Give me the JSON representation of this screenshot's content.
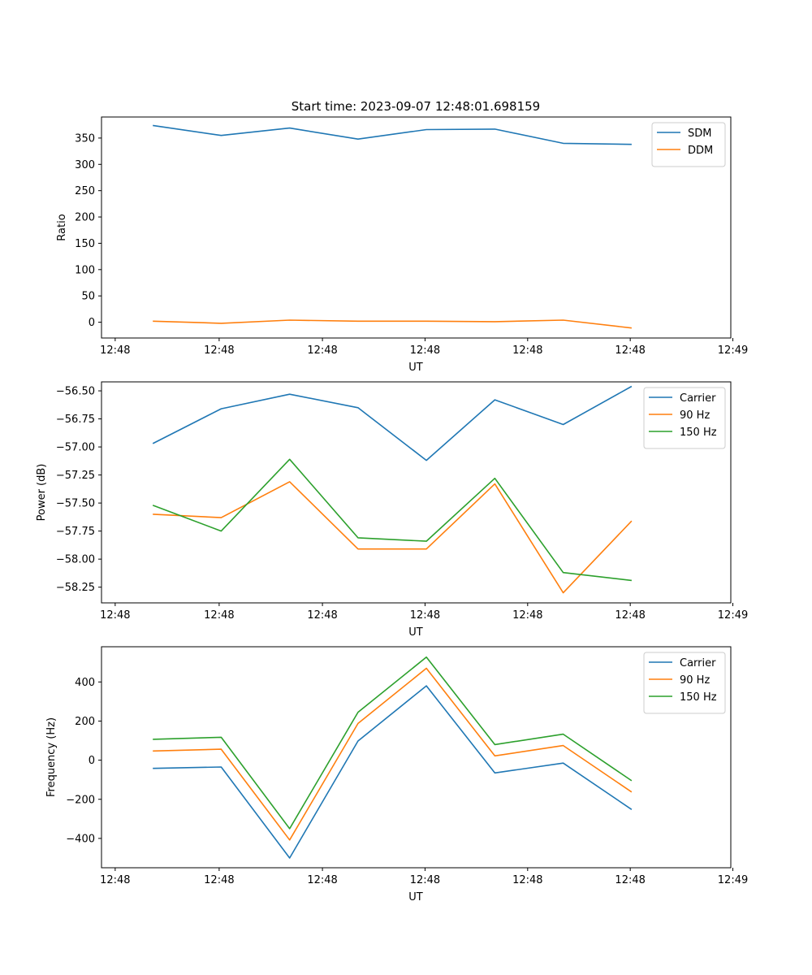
{
  "figure_title": "Start time: 2023-09-07 12:48:01.698159",
  "chart_data": [
    {
      "type": "line",
      "title": "Start time: 2023-09-07 12:48:01.698159",
      "xlabel": "UT",
      "ylabel": "Ratio",
      "x": [
        1,
        2,
        3,
        4,
        5,
        6,
        7,
        8
      ],
      "xlim": [
        0.25,
        9.45
      ],
      "xticks": [
        0.45,
        1.97,
        3.48,
        4.98,
        6.48,
        7.98,
        9.48
      ],
      "xtick_labels": [
        "12:48",
        "12:48",
        "12:48",
        "12:48",
        "12:48",
        "12:48",
        "12:49"
      ],
      "ylim": [
        -30,
        390
      ],
      "yticks": [
        0,
        50,
        100,
        150,
        200,
        250,
        300,
        350
      ],
      "ytick_labels": [
        "0",
        "50",
        "100",
        "150",
        "200",
        "250",
        "300",
        "350"
      ],
      "legend_position": "top-right",
      "series": [
        {
          "name": "SDM",
          "color": "#1f77b4",
          "values": [
            374,
            355,
            369,
            348,
            366,
            367,
            340,
            338
          ]
        },
        {
          "name": "DDM",
          "color": "#ff7f0e",
          "values": [
            2,
            -2,
            4,
            2,
            2,
            1,
            4,
            -11
          ]
        }
      ]
    },
    {
      "type": "line",
      "title": "",
      "xlabel": "UT",
      "ylabel": "Power (dB)",
      "x": [
        1,
        2,
        3,
        4,
        5,
        6,
        7,
        8
      ],
      "xlim": [
        0.25,
        9.45
      ],
      "xticks": [
        0.45,
        1.97,
        3.48,
        4.98,
        6.48,
        7.98,
        9.48
      ],
      "xtick_labels": [
        "12:48",
        "12:48",
        "12:48",
        "12:48",
        "12:48",
        "12:48",
        "12:49"
      ],
      "ylim": [
        -58.39,
        -56.42
      ],
      "yticks": [
        -58.25,
        -58.0,
        -57.75,
        -57.5,
        -57.25,
        -57.0,
        -56.75,
        -56.5
      ],
      "ytick_labels": [
        "−58.25",
        "−58.00",
        "−57.75",
        "−57.50",
        "−57.25",
        "−57.00",
        "−56.75",
        "−56.50"
      ],
      "legend_position": "top-right",
      "series": [
        {
          "name": "Carrier",
          "color": "#1f77b4",
          "values": [
            -56.97,
            -56.66,
            -56.53,
            -56.65,
            -57.12,
            -56.58,
            -56.8,
            -56.46
          ]
        },
        {
          "name": "90 Hz",
          "color": "#ff7f0e",
          "values": [
            -57.6,
            -57.63,
            -57.31,
            -57.91,
            -57.91,
            -57.33,
            -58.3,
            -57.66
          ]
        },
        {
          "name": "150 Hz",
          "color": "#2ca02c",
          "values": [
            -57.52,
            -57.75,
            -57.11,
            -57.81,
            -57.84,
            -57.28,
            -58.12,
            -58.19
          ]
        }
      ]
    },
    {
      "type": "line",
      "title": "",
      "xlabel": "UT",
      "ylabel": "Frequency (Hz)",
      "x": [
        1,
        2,
        3,
        4,
        5,
        6,
        7,
        8
      ],
      "xlim": [
        0.25,
        9.45
      ],
      "xticks": [
        0.45,
        1.97,
        3.48,
        4.98,
        6.48,
        7.98,
        9.48
      ],
      "xtick_labels": [
        "12:48",
        "12:48",
        "12:48",
        "12:48",
        "12:48",
        "12:48",
        "12:49"
      ],
      "ylim": [
        -550,
        580
      ],
      "yticks": [
        -400,
        -200,
        0,
        200,
        400
      ],
      "ytick_labels": [
        "−400",
        "−200",
        "0",
        "200",
        "400"
      ],
      "legend_position": "top-right",
      "series": [
        {
          "name": "Carrier",
          "color": "#1f77b4",
          "values": [
            -42,
            -35,
            -500,
            98,
            380,
            -65,
            -15,
            -252
          ]
        },
        {
          "name": "90 Hz",
          "color": "#ff7f0e",
          "values": [
            47,
            56,
            -408,
            188,
            470,
            22,
            75,
            -163
          ]
        },
        {
          "name": "150 Hz",
          "color": "#2ca02c",
          "values": [
            107,
            117,
            -350,
            245,
            527,
            80,
            133,
            -105
          ]
        }
      ]
    }
  ]
}
